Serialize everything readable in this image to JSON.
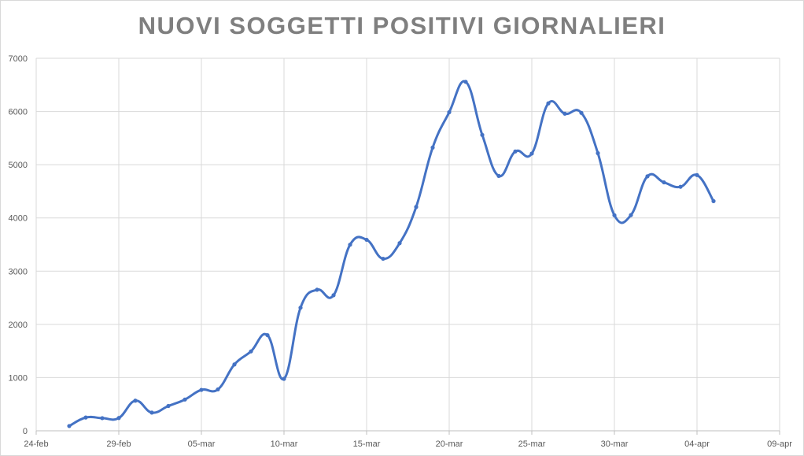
{
  "chart_data": {
    "type": "line",
    "title": "NUOVI SOGGETTI POSITIVI GIORNALIERI",
    "xlabel": "",
    "ylabel": "",
    "xlim": [
      "2020-02-24",
      "2020-04-09"
    ],
    "ylim": [
      0,
      7000
    ],
    "y_ticks": [
      0,
      1000,
      2000,
      3000,
      4000,
      5000,
      6000,
      7000
    ],
    "x_ticks": [
      "2020-02-24",
      "2020-02-29",
      "2020-03-05",
      "2020-03-10",
      "2020-03-15",
      "2020-03-20",
      "2020-03-25",
      "2020-03-30",
      "2020-04-04",
      "2020-04-09"
    ],
    "x_tick_labels": [
      "24-feb",
      "29-feb",
      "05-mar",
      "10-mar",
      "15-mar",
      "20-mar",
      "25-mar",
      "30-mar",
      "04-apr",
      "09-apr"
    ],
    "grid": true,
    "legend": "none",
    "line_color": "#4472c4",
    "smoothed": true,
    "series": [
      {
        "points": [
          {
            "x": "2020-02-26",
            "y": 90
          },
          {
            "x": "2020-02-27",
            "y": 250
          },
          {
            "x": "2020-02-28",
            "y": 238
          },
          {
            "x": "2020-02-29",
            "y": 240
          },
          {
            "x": "2020-03-01",
            "y": 566
          },
          {
            "x": "2020-03-02",
            "y": 342
          },
          {
            "x": "2020-03-03",
            "y": 466
          },
          {
            "x": "2020-03-04",
            "y": 587
          },
          {
            "x": "2020-03-05",
            "y": 769
          },
          {
            "x": "2020-03-06",
            "y": 778
          },
          {
            "x": "2020-03-07",
            "y": 1247
          },
          {
            "x": "2020-03-08",
            "y": 1492
          },
          {
            "x": "2020-03-09",
            "y": 1797
          },
          {
            "x": "2020-03-10",
            "y": 977
          },
          {
            "x": "2020-03-11",
            "y": 2313
          },
          {
            "x": "2020-03-12",
            "y": 2651
          },
          {
            "x": "2020-03-13",
            "y": 2547
          },
          {
            "x": "2020-03-14",
            "y": 3497
          },
          {
            "x": "2020-03-15",
            "y": 3590
          },
          {
            "x": "2020-03-16",
            "y": 3233
          },
          {
            "x": "2020-03-17",
            "y": 3526
          },
          {
            "x": "2020-03-18",
            "y": 4207
          },
          {
            "x": "2020-03-19",
            "y": 5322
          },
          {
            "x": "2020-03-20",
            "y": 5986
          },
          {
            "x": "2020-03-21",
            "y": 6557
          },
          {
            "x": "2020-03-22",
            "y": 5560
          },
          {
            "x": "2020-03-23",
            "y": 4789
          },
          {
            "x": "2020-03-24",
            "y": 5249
          },
          {
            "x": "2020-03-25",
            "y": 5210
          },
          {
            "x": "2020-03-26",
            "y": 6153
          },
          {
            "x": "2020-03-27",
            "y": 5959
          },
          {
            "x": "2020-03-28",
            "y": 5974
          },
          {
            "x": "2020-03-29",
            "y": 5217
          },
          {
            "x": "2020-03-30",
            "y": 4050
          },
          {
            "x": "2020-03-31",
            "y": 4053
          },
          {
            "x": "2020-04-01",
            "y": 4782
          },
          {
            "x": "2020-04-02",
            "y": 4668
          },
          {
            "x": "2020-04-03",
            "y": 4585
          },
          {
            "x": "2020-04-04",
            "y": 4805
          },
          {
            "x": "2020-04-05",
            "y": 4316
          }
        ]
      }
    ]
  }
}
